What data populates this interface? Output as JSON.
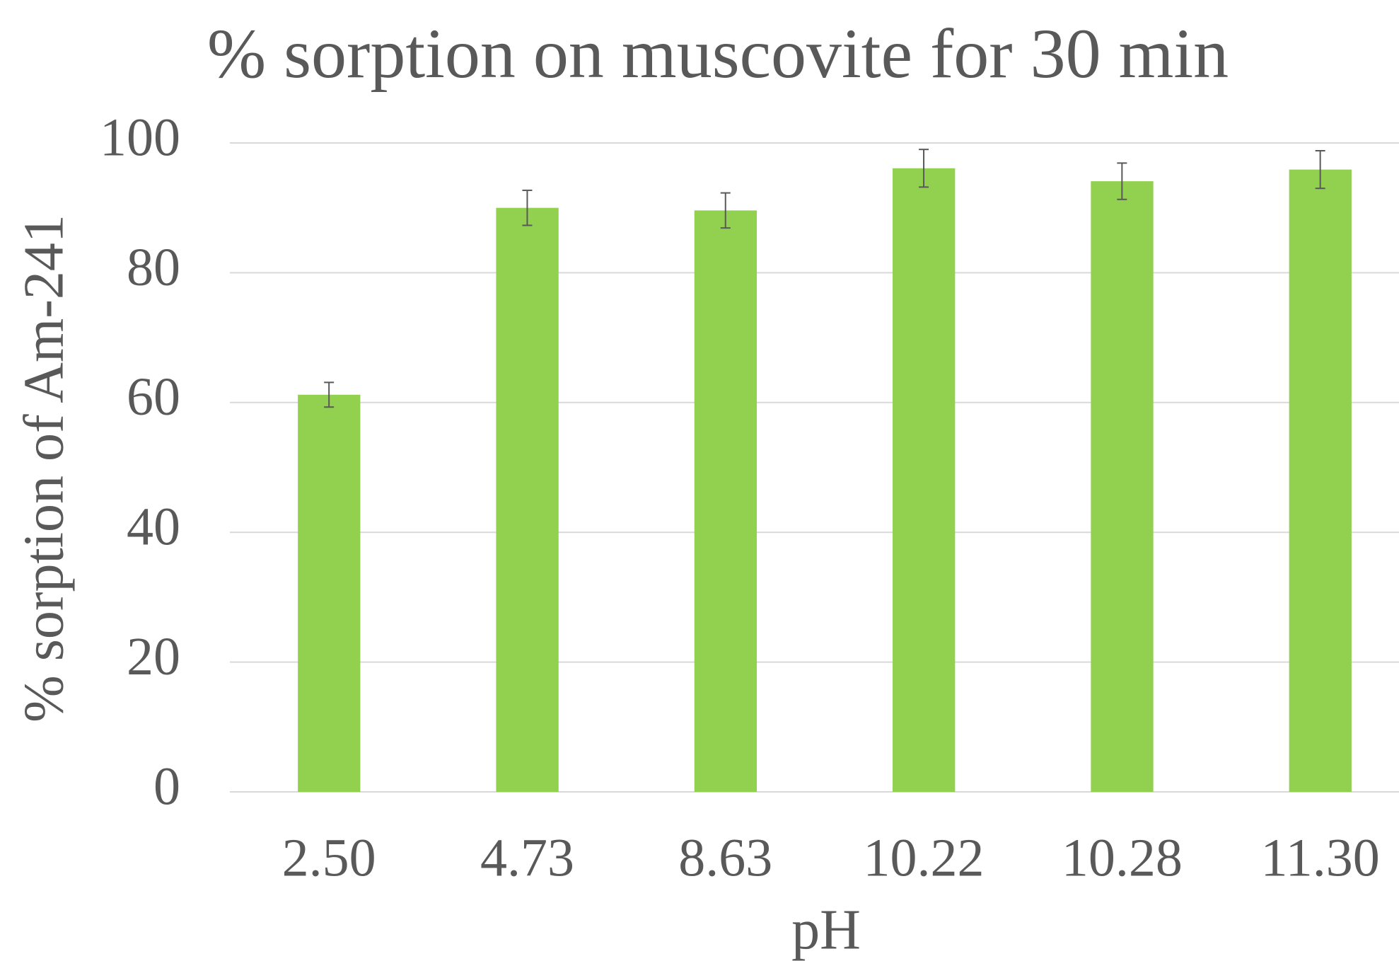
{
  "chart_data": {
    "type": "bar",
    "title": "% sorption on muscovite for 30 min",
    "x_label": "pH",
    "y_label": "% sorption of Am-241",
    "categories": [
      "2.50",
      "4.73",
      "8.63",
      "10.22",
      "10.28",
      "11.30"
    ],
    "values": [
      61.2,
      90.0,
      89.6,
      96.1,
      94.1,
      95.9
    ],
    "errors": [
      1.9,
      2.7,
      2.7,
      2.9,
      2.8,
      2.9
    ],
    "color": "#92d050",
    "ylim": [
      0,
      100
    ],
    "yticks": [
      0,
      20,
      40,
      60,
      80,
      100
    ],
    "grid": true
  }
}
